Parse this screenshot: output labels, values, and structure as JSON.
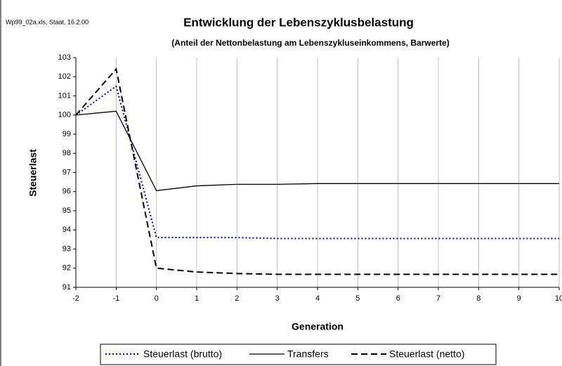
{
  "chart_data": {
    "type": "line",
    "note": "Wp99_02a.xls, Staat, 16.2.00",
    "title": "Entwicklung der Lebenszyklusbelastung",
    "subtitle": "(Anteil der Nettonbelastung am Lebenszykluseinkommens, Barwerte)",
    "x_label": "Generation",
    "y_label": "Steuerlast",
    "x": [
      -2,
      -1,
      0,
      1,
      2,
      3,
      4,
      5,
      6,
      7,
      8,
      9,
      10
    ],
    "xlim": [
      -2,
      10
    ],
    "xticks": [
      -2,
      -1,
      0,
      1,
      2,
      3,
      4,
      5,
      6,
      7,
      8,
      9,
      10
    ],
    "ylim": [
      91,
      103
    ],
    "yticks": [
      91,
      92,
      93,
      94,
      95,
      96,
      97,
      98,
      99,
      100,
      101,
      102,
      103
    ],
    "grid": "x",
    "legend": "bottom",
    "series": [
      {
        "name": "Steuerlast (brutto)",
        "color": "#0000cc",
        "line_style": "dotted",
        "values": [
          100,
          101.5,
          93.6,
          93.6,
          93.6,
          93.55,
          93.55,
          93.55,
          93.55,
          93.55,
          93.55,
          93.55,
          93.55
        ]
      },
      {
        "name": "Transfers",
        "color": "#000000",
        "line_style": "solid",
        "values": [
          100,
          100.2,
          96.05,
          96.3,
          96.38,
          96.38,
          96.42,
          96.42,
          96.42,
          96.42,
          96.42,
          96.42,
          96.42
        ]
      },
      {
        "name": "Steuerlast (netto)",
        "color": "#000000",
        "line_style": "dashed",
        "values": [
          100,
          102.4,
          92.0,
          91.8,
          91.72,
          91.68,
          91.68,
          91.68,
          91.68,
          91.68,
          91.68,
          91.68,
          91.68
        ]
      }
    ]
  }
}
